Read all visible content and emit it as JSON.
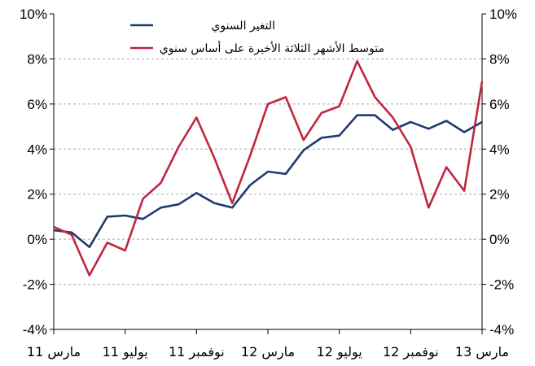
{
  "chart_data": {
    "type": "line",
    "x": [
      "Mar-11",
      "Apr-11",
      "May-11",
      "Jun-11",
      "Jul-11",
      "Aug-11",
      "Sep-11",
      "Oct-11",
      "Nov-11",
      "Dec-11",
      "Jan-12",
      "Feb-12",
      "Mar-12",
      "Apr-12",
      "May-12",
      "Jun-12",
      "Jul-12",
      "Aug-12",
      "Sep-12",
      "Oct-12",
      "Nov-12",
      "Dec-12",
      "Jan-13",
      "Feb-13",
      "Mar-13"
    ],
    "xtick_labels": [
      "مارس 11",
      "يوليو 11",
      "نوفمبر 11",
      "مارس 12",
      "يوليو 12",
      "نوفمبر 12",
      "مارس 13"
    ],
    "series": [
      {
        "name": "التغير السنوي",
        "color": "#1f3a6e",
        "values": [
          0.4,
          0.3,
          -0.35,
          1.0,
          1.05,
          0.9,
          1.4,
          1.55,
          2.05,
          1.6,
          1.4,
          2.4,
          3.0,
          2.9,
          3.95,
          4.5,
          4.6,
          5.5,
          5.5,
          4.85,
          5.2,
          4.9,
          5.25,
          4.75,
          5.2
        ]
      },
      {
        "name": "متوسط الأشهر الثلاثة الأخيرة على أساس سنوي",
        "color": "#c0263f",
        "values": [
          0.55,
          0.2,
          -1.6,
          -0.15,
          -0.5,
          1.8,
          2.5,
          4.1,
          5.4,
          3.6,
          1.6,
          3.7,
          6.0,
          6.3,
          4.4,
          5.6,
          5.9,
          7.9,
          6.3,
          5.4,
          4.1,
          1.4,
          3.2,
          2.15,
          7.0
        ]
      }
    ],
    "ylim": [
      -4,
      10
    ],
    "yticks": [
      "-4%",
      "-2%",
      "0%",
      "2%",
      "4%",
      "6%",
      "8%",
      "10%"
    ],
    "ytick_values": [
      -4,
      -2,
      0,
      2,
      4,
      6,
      8,
      10
    ],
    "grid": true,
    "legend_position": "top-left"
  }
}
